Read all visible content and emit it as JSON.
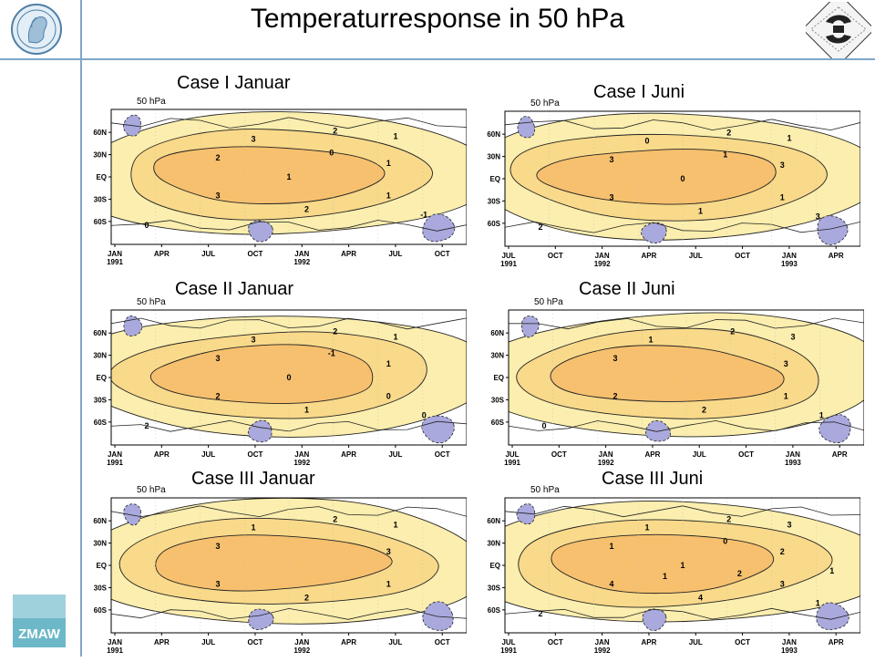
{
  "title": "Temperaturresponse in 50 hPa",
  "logos": {
    "left": "max-planck-logo",
    "right": "institute-logo",
    "bottom": "zmaw-logo",
    "bottom_text": "ZMAW"
  },
  "colors": {
    "rule": "#7fa7c9",
    "warm_light": "#fbeeae",
    "warm_mid": "#f9d98a",
    "warm_strong": "#f6c06e",
    "cool": "#a9a9dd"
  },
  "panels": [
    {
      "label": "Case I Januar",
      "level": "50 hPa",
      "lat_ticks": [
        "60N",
        "30N",
        "EQ",
        "30S",
        "60S"
      ],
      "time_ticks": [
        {
          "month": "JAN",
          "year": "1991"
        },
        {
          "month": "APR",
          "year": ""
        },
        {
          "month": "JUL",
          "year": ""
        },
        {
          "month": "OCT",
          "year": ""
        },
        {
          "month": "JAN",
          "year": "1992"
        },
        {
          "month": "APR",
          "year": ""
        },
        {
          "month": "JUL",
          "year": ""
        },
        {
          "month": "OCT",
          "year": ""
        }
      ],
      "contour_labels": [
        "3",
        "2",
        "1",
        "2",
        "1",
        "3",
        "2",
        "1",
        "0",
        "-1",
        "0",
        "1"
      ]
    },
    {
      "label": "Case I Juni",
      "level": "50 hPa",
      "lat_ticks": [
        "60N",
        "30N",
        "EQ",
        "30S",
        "60S"
      ],
      "time_ticks": [
        {
          "month": "JUL",
          "year": "1991"
        },
        {
          "month": "OCT",
          "year": ""
        },
        {
          "month": "JAN",
          "year": "1992"
        },
        {
          "month": "APR",
          "year": ""
        },
        {
          "month": "JUL",
          "year": ""
        },
        {
          "month": "OCT",
          "year": ""
        },
        {
          "month": "JAN",
          "year": "1993"
        },
        {
          "month": "APR",
          "year": ""
        }
      ],
      "contour_labels": [
        "0",
        "2",
        "1",
        "3",
        "3",
        "3",
        "1",
        "1",
        "2",
        "3",
        "1",
        "0"
      ]
    },
    {
      "label": "Case II Januar",
      "level": "50 hPa",
      "lat_ticks": [
        "60N",
        "30N",
        "EQ",
        "30S",
        "60S"
      ],
      "time_ticks": [
        {
          "month": "JAN",
          "year": "1991"
        },
        {
          "month": "APR",
          "year": ""
        },
        {
          "month": "JUL",
          "year": ""
        },
        {
          "month": "OCT",
          "year": ""
        },
        {
          "month": "JAN",
          "year": "1992"
        },
        {
          "month": "APR",
          "year": ""
        },
        {
          "month": "JUL",
          "year": ""
        },
        {
          "month": "OCT",
          "year": ""
        }
      ],
      "contour_labels": [
        "3",
        "2",
        "1",
        "3",
        "1",
        "2",
        "1",
        "0",
        "2",
        "0",
        "-1",
        "0"
      ]
    },
    {
      "label": "Case II Juni",
      "level": "50 hPa",
      "lat_ticks": [
        "60N",
        "30N",
        "EQ",
        "30S",
        "60S"
      ],
      "time_ticks": [
        {
          "month": "JUL",
          "year": "1991"
        },
        {
          "month": "OCT",
          "year": ""
        },
        {
          "month": "JAN",
          "year": "1992"
        },
        {
          "month": "APR",
          "year": ""
        },
        {
          "month": "JUL",
          "year": ""
        },
        {
          "month": "OCT",
          "year": ""
        },
        {
          "month": "JAN",
          "year": "1993"
        },
        {
          "month": "APR",
          "year": ""
        }
      ],
      "contour_labels": [
        "1",
        "2",
        "3",
        "3",
        "3",
        "2",
        "2",
        "1",
        "0",
        "1"
      ]
    },
    {
      "label": "Case III Januar",
      "level": "50 hPa",
      "lat_ticks": [
        "60N",
        "30N",
        "EQ",
        "30S",
        "60S"
      ],
      "time_ticks": [
        {
          "month": "JAN",
          "year": "1991"
        },
        {
          "month": "APR",
          "year": ""
        },
        {
          "month": "JUL",
          "year": ""
        },
        {
          "month": "OCT",
          "year": ""
        },
        {
          "month": "JAN",
          "year": "1992"
        },
        {
          "month": "APR",
          "year": ""
        },
        {
          "month": "JUL",
          "year": ""
        },
        {
          "month": "OCT",
          "year": ""
        }
      ],
      "contour_labels": [
        "1",
        "2",
        "1",
        "3",
        "3",
        "3",
        "2",
        "1"
      ]
    },
    {
      "label": "Case III Juni",
      "level": "50 hPa",
      "lat_ticks": [
        "60N",
        "30N",
        "EQ",
        "30S",
        "60S"
      ],
      "time_ticks": [
        {
          "month": "JUL",
          "year": "1991"
        },
        {
          "month": "OCT",
          "year": ""
        },
        {
          "month": "JAN",
          "year": "1992"
        },
        {
          "month": "APR",
          "year": ""
        },
        {
          "month": "JUL",
          "year": ""
        },
        {
          "month": "OCT",
          "year": ""
        },
        {
          "month": "JAN",
          "year": "1993"
        },
        {
          "month": "APR",
          "year": ""
        }
      ],
      "contour_labels": [
        "1",
        "2",
        "3",
        "1",
        "2",
        "4",
        "4",
        "3",
        "2",
        "1",
        "0",
        "1",
        "1",
        "2",
        "1"
      ]
    }
  ]
}
